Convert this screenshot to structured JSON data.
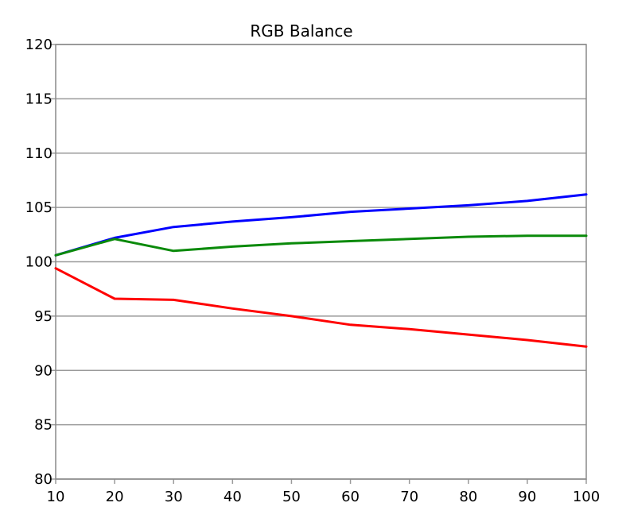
{
  "chart_data": {
    "type": "line",
    "title": "RGB Balance",
    "xlabel": "",
    "ylabel": "",
    "x": [
      10,
      20,
      30,
      40,
      50,
      60,
      70,
      80,
      90,
      100
    ],
    "xlim": [
      10,
      100
    ],
    "ylim": [
      80,
      120
    ],
    "xticks": [
      "10",
      "20",
      "30",
      "40",
      "50",
      "60",
      "70",
      "80",
      "90",
      "100"
    ],
    "yticks": [
      "80",
      "85",
      "90",
      "95",
      "100",
      "105",
      "110",
      "115",
      "120"
    ],
    "grid": "horizontal",
    "series": [
      {
        "color": "#0000ff",
        "values": [
          100.6,
          102.2,
          103.2,
          103.7,
          104.1,
          104.6,
          104.9,
          105.2,
          105.6,
          106.2
        ]
      },
      {
        "color": "#0a8a0a",
        "values": [
          100.6,
          102.1,
          101.0,
          101.4,
          101.7,
          101.9,
          102.1,
          102.3,
          102.4,
          102.4
        ]
      },
      {
        "color": "#ff0000",
        "values": [
          99.4,
          96.6,
          96.5,
          95.7,
          95.0,
          94.2,
          93.8,
          93.3,
          92.8,
          92.2
        ]
      }
    ]
  }
}
